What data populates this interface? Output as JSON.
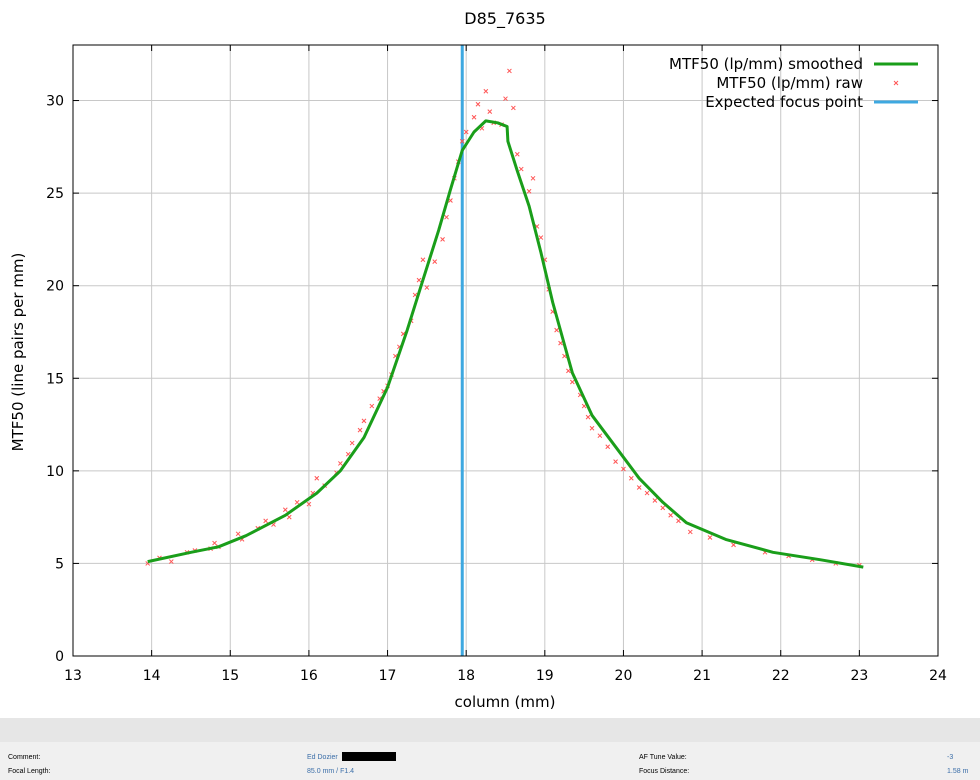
{
  "chart_data": {
    "type": "line",
    "title": "D85_7635",
    "xlabel": "column (mm)",
    "ylabel": "MTF50 (line pairs per mm)",
    "xlim": [
      13,
      24
    ],
    "ylim": [
      0,
      33
    ],
    "x_ticks": [
      13,
      14,
      15,
      16,
      17,
      18,
      19,
      20,
      21,
      22,
      23,
      24
    ],
    "y_ticks": [
      0,
      5,
      10,
      15,
      20,
      25,
      30
    ],
    "grid": true,
    "legend_position": "top-right",
    "colors": {
      "smoothed": "#1a9e1a",
      "raw": "#ff5555",
      "focus": "#3ea8e0"
    },
    "series": [
      {
        "name": "MTF50 (lp/mm) smoothed",
        "style": "line",
        "x": [
          13.95,
          14.5,
          14.85,
          15.2,
          15.7,
          16.1,
          16.4,
          16.7,
          17.0,
          17.25,
          17.45,
          17.65,
          17.8,
          17.95,
          18.1,
          18.25,
          18.4,
          18.52,
          18.53,
          18.65,
          18.8,
          18.95,
          19.1,
          19.25,
          19.35,
          19.6,
          19.9,
          20.2,
          20.5,
          20.8,
          21.3,
          21.9,
          22.5,
          23.05
        ],
        "y": [
          5.1,
          5.6,
          5.9,
          6.5,
          7.6,
          8.8,
          10.0,
          11.8,
          14.5,
          17.6,
          20.3,
          23.0,
          25.2,
          27.3,
          28.3,
          28.9,
          28.8,
          28.6,
          27.8,
          26.2,
          24.3,
          21.8,
          19.1,
          16.8,
          15.3,
          13.0,
          11.3,
          9.6,
          8.3,
          7.2,
          6.3,
          5.6,
          5.2,
          4.8
        ]
      },
      {
        "name": "MTF50 (lp/mm) raw",
        "style": "points",
        "points": [
          [
            13.95,
            5.0
          ],
          [
            14.1,
            5.3
          ],
          [
            14.25,
            5.1
          ],
          [
            14.45,
            5.6
          ],
          [
            14.55,
            5.7
          ],
          [
            14.75,
            5.8
          ],
          [
            14.8,
            6.1
          ],
          [
            14.85,
            5.9
          ],
          [
            15.1,
            6.6
          ],
          [
            15.15,
            6.3
          ],
          [
            15.35,
            6.9
          ],
          [
            15.45,
            7.3
          ],
          [
            15.55,
            7.1
          ],
          [
            15.7,
            7.9
          ],
          [
            15.75,
            7.5
          ],
          [
            15.85,
            8.3
          ],
          [
            16.0,
            8.2
          ],
          [
            16.05,
            8.8
          ],
          [
            16.1,
            9.6
          ],
          [
            16.2,
            9.2
          ],
          [
            16.35,
            9.9
          ],
          [
            16.4,
            10.4
          ],
          [
            16.5,
            10.9
          ],
          [
            16.55,
            11.5
          ],
          [
            16.65,
            12.2
          ],
          [
            16.7,
            12.7
          ],
          [
            16.8,
            13.5
          ],
          [
            16.9,
            13.9
          ],
          [
            16.95,
            14.3
          ],
          [
            17.0,
            14.6
          ],
          [
            17.05,
            15.2
          ],
          [
            17.1,
            16.2
          ],
          [
            17.15,
            16.7
          ],
          [
            17.2,
            17.4
          ],
          [
            17.3,
            18.1
          ],
          [
            17.35,
            19.5
          ],
          [
            17.4,
            20.3
          ],
          [
            17.45,
            21.4
          ],
          [
            17.5,
            19.9
          ],
          [
            17.6,
            21.3
          ],
          [
            17.7,
            22.5
          ],
          [
            17.75,
            23.7
          ],
          [
            17.8,
            24.6
          ],
          [
            17.85,
            25.8
          ],
          [
            17.9,
            26.7
          ],
          [
            17.95,
            27.8
          ],
          [
            18.0,
            28.3
          ],
          [
            18.1,
            29.1
          ],
          [
            18.15,
            29.8
          ],
          [
            18.2,
            28.5
          ],
          [
            18.25,
            30.5
          ],
          [
            18.3,
            29.4
          ],
          [
            18.35,
            28.8
          ],
          [
            18.45,
            28.7
          ],
          [
            18.5,
            30.1
          ],
          [
            18.55,
            31.6
          ],
          [
            18.6,
            29.6
          ],
          [
            18.65,
            27.1
          ],
          [
            18.7,
            26.3
          ],
          [
            18.8,
            25.1
          ],
          [
            18.85,
            25.8
          ],
          [
            18.9,
            23.2
          ],
          [
            18.95,
            22.6
          ],
          [
            19.0,
            21.4
          ],
          [
            19.05,
            19.8
          ],
          [
            19.1,
            18.6
          ],
          [
            19.15,
            17.6
          ],
          [
            19.2,
            16.9
          ],
          [
            19.25,
            16.2
          ],
          [
            19.3,
            15.4
          ],
          [
            19.35,
            14.8
          ],
          [
            19.45,
            14.1
          ],
          [
            19.5,
            13.5
          ],
          [
            19.55,
            12.9
          ],
          [
            19.6,
            12.3
          ],
          [
            19.7,
            11.9
          ],
          [
            19.8,
            11.3
          ],
          [
            19.9,
            10.5
          ],
          [
            20.0,
            10.1
          ],
          [
            20.1,
            9.6
          ],
          [
            20.2,
            9.1
          ],
          [
            20.3,
            8.8
          ],
          [
            20.4,
            8.4
          ],
          [
            20.5,
            8.0
          ],
          [
            20.6,
            7.6
          ],
          [
            20.7,
            7.3
          ],
          [
            20.85,
            6.7
          ],
          [
            21.1,
            6.4
          ],
          [
            21.4,
            6.0
          ],
          [
            21.8,
            5.6
          ],
          [
            22.1,
            5.4
          ],
          [
            22.4,
            5.2
          ],
          [
            22.7,
            5.0
          ],
          [
            23.0,
            4.9
          ]
        ]
      },
      {
        "name": "Expected focus point",
        "style": "vline",
        "x": 17.95
      }
    ]
  },
  "info_panel": {
    "comment_label": "Comment:",
    "comment_value": "Ed Dozier",
    "focal_length_label": "Focal Length:",
    "focal_length_value": "85.0 mm / F1.4",
    "af_tune_label": "AF Tune Value:",
    "af_tune_value": "-3",
    "focus_distance_label": "Focus Distance:",
    "focus_distance_value": "1.58 m"
  }
}
